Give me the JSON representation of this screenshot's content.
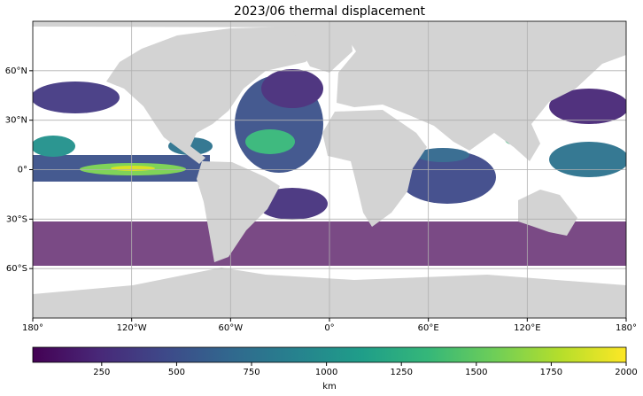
{
  "chart_data": {
    "type": "map",
    "title": "2023/06 thermal displacement",
    "xlim": [
      -180,
      180
    ],
    "ylim": [
      -90,
      90
    ],
    "xticks": [
      {
        "value": -180,
        "label": "180°"
      },
      {
        "value": -120,
        "label": "120°W"
      },
      {
        "value": -60,
        "label": "60°W"
      },
      {
        "value": 0,
        "label": "0°"
      },
      {
        "value": 60,
        "label": "60°E"
      },
      {
        "value": 120,
        "label": "120°E"
      },
      {
        "value": 180,
        "label": "180°"
      }
    ],
    "yticks": [
      {
        "value": 60,
        "label": "60°N"
      },
      {
        "value": 30,
        "label": "30°N"
      },
      {
        "value": 0,
        "label": "0°"
      },
      {
        "value": -30,
        "label": "30°S"
      },
      {
        "value": -60,
        "label": "60°S"
      }
    ],
    "grid": true,
    "colorbar": {
      "label": "km",
      "colormap": "viridis",
      "lim": [
        20,
        2000
      ],
      "ticks": [
        250,
        500,
        750,
        1000,
        1250,
        1500,
        1750,
        2000
      ]
    }
  }
}
